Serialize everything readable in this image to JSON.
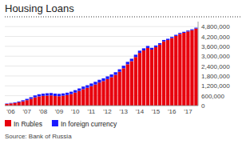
{
  "chart_data": {
    "type": "bar",
    "title": "Housing Loans",
    "annotations": [
      "Source: Bank of Russia"
    ],
    "categories": [
      null,
      "'06",
      null,
      null,
      null,
      "'07",
      null,
      null,
      null,
      "'08",
      null,
      null,
      null,
      "'09",
      null,
      null,
      null,
      "'10",
      null,
      null,
      null,
      "'11",
      null,
      null,
      null,
      "'12",
      null,
      null,
      null,
      "'13",
      null,
      null,
      null,
      "'14",
      null,
      null,
      null,
      "'15",
      null,
      null,
      null,
      "'16",
      null,
      null,
      null,
      "'17",
      null,
      null
    ],
    "series": [
      {
        "name": "In Rubles",
        "color": "#e8000d",
        "values": [
          100000,
          130000,
          160000,
          200000,
          260000,
          330000,
          410000,
          500000,
          560000,
          590000,
          610000,
          620000,
          580000,
          570000,
          600000,
          640000,
          700000,
          790000,
          890000,
          1000000,
          1080000,
          1180000,
          1280000,
          1400000,
          1490000,
          1610000,
          1730000,
          1870000,
          2050000,
          2270000,
          2510000,
          2700000,
          2950000,
          3200000,
          3350000,
          3500000,
          3400000,
          3550000,
          3700000,
          3900000,
          3980000,
          4100000,
          4230000,
          4350000,
          4420000,
          4500000,
          4580000,
          4680000
        ]
      },
      {
        "name": "In foreign currency",
        "color": "#1a1aff",
        "values": [
          25000,
          30000,
          38000,
          50000,
          65000,
          80000,
          100000,
          120000,
          130000,
          135000,
          140000,
          145000,
          150000,
          145000,
          140000,
          145000,
          145000,
          148000,
          152000,
          155000,
          158000,
          162000,
          165000,
          168000,
          168000,
          165000,
          162000,
          158000,
          155000,
          152000,
          148000,
          145000,
          140000,
          135000,
          128000,
          120000,
          110000,
          100000,
          92000,
          85000,
          78000,
          72000,
          67000,
          63000,
          60000,
          57000,
          55000,
          52000
        ]
      }
    ],
    "stacked": true,
    "ylim": [
      0,
      5100000
    ],
    "yticks": [
      0,
      {
        "value": 600000,
        "label": "600,000"
      },
      {
        "value": 1200000,
        "label": "1,200,000"
      },
      {
        "value": 1800000,
        "label": "1,800,000"
      },
      {
        "value": 2400000,
        "label": "2,400,000"
      },
      {
        "value": 3000000,
        "label": "3,000,000"
      },
      {
        "value": 3600000,
        "label": "3,600,000"
      },
      {
        "value": 4200000,
        "label": "4,200,000"
      },
      {
        "value": 4800000,
        "label": "4,800,000"
      }
    ],
    "grid": true,
    "legend": "lower left"
  }
}
